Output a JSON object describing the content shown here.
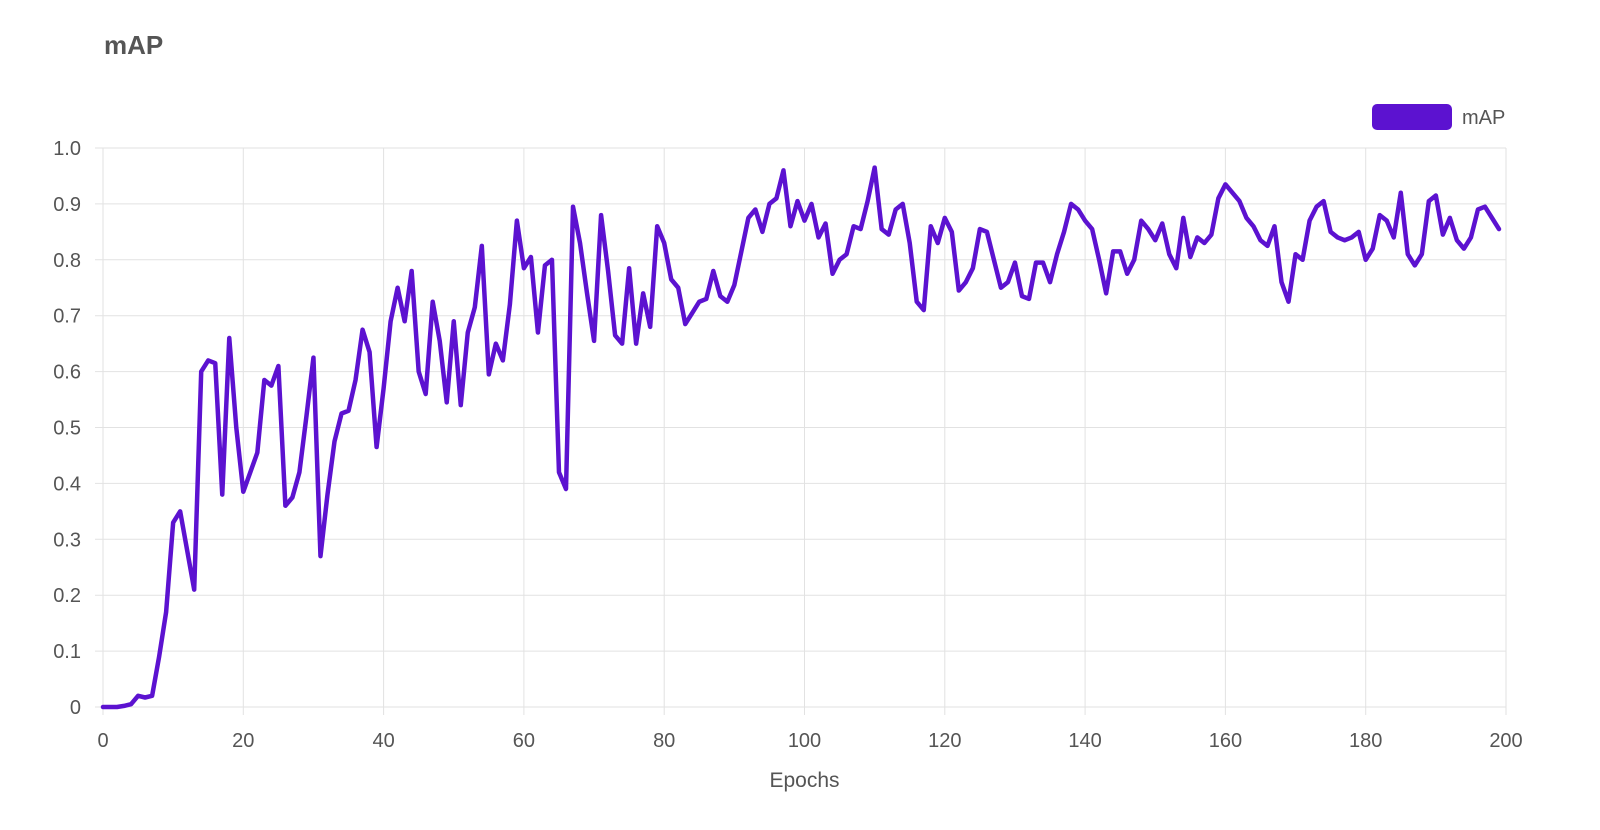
{
  "title": "mAP",
  "chart_data": {
    "type": "line",
    "title": "mAP",
    "xlabel": "Epochs",
    "ylabel": "",
    "xlim": [
      0,
      200
    ],
    "ylim": [
      0,
      1
    ],
    "xticks": [
      0,
      20,
      40,
      60,
      80,
      100,
      120,
      140,
      160,
      180,
      200
    ],
    "yticks": [
      0,
      0.1,
      0.2,
      0.3,
      0.4,
      0.5,
      0.6,
      0.7,
      0.8,
      0.9,
      1.0
    ],
    "ytick_labels": [
      "0",
      "0.1",
      "0.2",
      "0.3",
      "0.4",
      "0.5",
      "0.6",
      "0.7",
      "0.8",
      "0.9",
      "1.0"
    ],
    "grid": true,
    "legend_position": "top-right",
    "series": [
      {
        "name": "mAP",
        "color": "#5c12d0",
        "x": [
          0,
          1,
          2,
          3,
          4,
          5,
          6,
          7,
          8,
          9,
          10,
          11,
          12,
          13,
          14,
          15,
          16,
          17,
          18,
          19,
          20,
          21,
          22,
          23,
          24,
          25,
          26,
          27,
          28,
          29,
          30,
          31,
          32,
          33,
          34,
          35,
          36,
          37,
          38,
          39,
          40,
          41,
          42,
          43,
          44,
          45,
          46,
          47,
          48,
          49,
          50,
          51,
          52,
          53,
          54,
          55,
          56,
          57,
          58,
          59,
          60,
          61,
          62,
          63,
          64,
          65,
          66,
          67,
          68,
          69,
          70,
          71,
          72,
          73,
          74,
          75,
          76,
          77,
          78,
          79,
          80,
          81,
          82,
          83,
          84,
          85,
          86,
          87,
          88,
          89,
          90,
          91,
          92,
          93,
          94,
          95,
          96,
          97,
          98,
          99,
          100,
          101,
          102,
          103,
          104,
          105,
          106,
          107,
          108,
          109,
          110,
          111,
          112,
          113,
          114,
          115,
          116,
          117,
          118,
          119,
          120,
          121,
          122,
          123,
          124,
          125,
          126,
          127,
          128,
          129,
          130,
          131,
          132,
          133,
          134,
          135,
          136,
          137,
          138,
          139,
          140,
          141,
          142,
          143,
          144,
          145,
          146,
          147,
          148,
          149,
          150,
          151,
          152,
          153,
          154,
          155,
          156,
          157,
          158,
          159,
          160,
          161,
          162,
          163,
          164,
          165,
          166,
          167,
          168,
          169,
          170,
          171,
          172,
          173,
          174,
          175,
          176,
          177,
          178,
          179,
          180,
          181,
          182,
          183,
          184,
          185,
          186,
          187,
          188,
          189,
          190,
          191,
          192,
          193,
          194,
          195,
          196,
          197,
          198,
          199
        ],
        "values": [
          0.0,
          0.0,
          0.0,
          0.002,
          0.005,
          0.02,
          0.017,
          0.02,
          0.09,
          0.17,
          0.33,
          0.35,
          0.28,
          0.21,
          0.6,
          0.62,
          0.615,
          0.38,
          0.66,
          0.5,
          0.385,
          0.42,
          0.455,
          0.585,
          0.575,
          0.61,
          0.36,
          0.375,
          0.42,
          0.52,
          0.625,
          0.27,
          0.38,
          0.475,
          0.525,
          0.53,
          0.585,
          0.675,
          0.635,
          0.465,
          0.57,
          0.69,
          0.75,
          0.69,
          0.78,
          0.6,
          0.56,
          0.725,
          0.655,
          0.545,
          0.69,
          0.54,
          0.67,
          0.715,
          0.825,
          0.595,
          0.65,
          0.62,
          0.72,
          0.87,
          0.785,
          0.805,
          0.67,
          0.79,
          0.8,
          0.42,
          0.39,
          0.895,
          0.83,
          0.74,
          0.655,
          0.88,
          0.78,
          0.665,
          0.65,
          0.785,
          0.65,
          0.74,
          0.68,
          0.86,
          0.83,
          0.765,
          0.75,
          0.685,
          0.705,
          0.725,
          0.73,
          0.78,
          0.735,
          0.725,
          0.755,
          0.815,
          0.875,
          0.89,
          0.85,
          0.9,
          0.91,
          0.96,
          0.86,
          0.905,
          0.87,
          0.9,
          0.84,
          0.865,
          0.775,
          0.8,
          0.81,
          0.86,
          0.855,
          0.905,
          0.965,
          0.855,
          0.845,
          0.89,
          0.9,
          0.83,
          0.725,
          0.71,
          0.86,
          0.83,
          0.875,
          0.85,
          0.745,
          0.76,
          0.785,
          0.855,
          0.85,
          0.8,
          0.75,
          0.76,
          0.795,
          0.735,
          0.73,
          0.795,
          0.795,
          0.76,
          0.81,
          0.85,
          0.9,
          0.89,
          0.87,
          0.855,
          0.8,
          0.74,
          0.815,
          0.815,
          0.775,
          0.8,
          0.87,
          0.855,
          0.835,
          0.865,
          0.81,
          0.785,
          0.875,
          0.805,
          0.84,
          0.83,
          0.845,
          0.91,
          0.935,
          0.92,
          0.905,
          0.875,
          0.86,
          0.835,
          0.825,
          0.86,
          0.76,
          0.725,
          0.81,
          0.8,
          0.87,
          0.895,
          0.905,
          0.85,
          0.84,
          0.835,
          0.84,
          0.85,
          0.8,
          0.82,
          0.88,
          0.87,
          0.84,
          0.92,
          0.81,
          0.79,
          0.81,
          0.905,
          0.915,
          0.845,
          0.875,
          0.835,
          0.82,
          0.84,
          0.89,
          0.895,
          0.875,
          0.855
        ]
      }
    ]
  }
}
